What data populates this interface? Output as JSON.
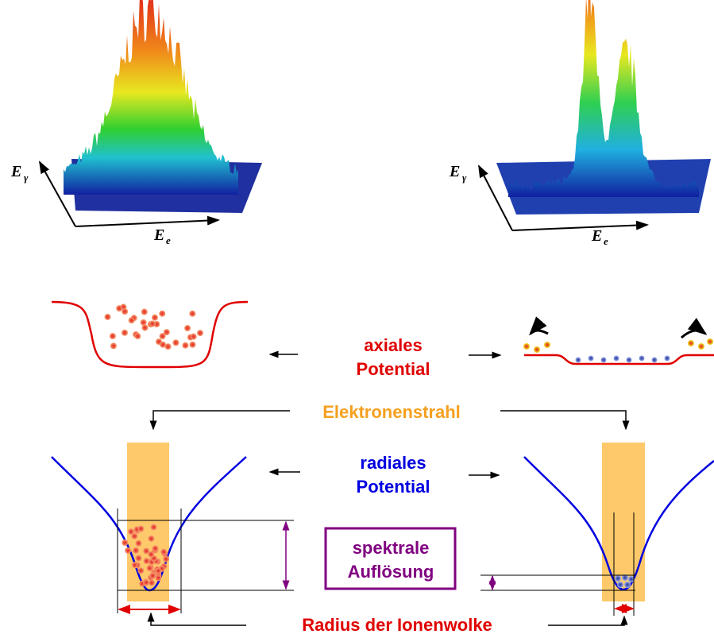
{
  "plots": [
    {
      "y_axis": {
        "symbol": "E",
        "subscript": "γ"
      },
      "x_axis": {
        "symbol": "E",
        "subscript": "e"
      }
    },
    {
      "y_axis": {
        "symbol": "E",
        "subscript": "γ"
      },
      "x_axis": {
        "symbol": "E",
        "subscript": "e"
      }
    }
  ],
  "axial_potential": {
    "line1": "axiales",
    "line2": "Potential"
  },
  "electron_beam": "Elektronenstrahl",
  "radial_potential": {
    "line1": "radiales",
    "line2": "Potential"
  },
  "spectral_resolution": {
    "line1": "spektrale",
    "line2": "Auflösung"
  },
  "ion_cloud_radius": "Radius der Ionenwolke"
}
